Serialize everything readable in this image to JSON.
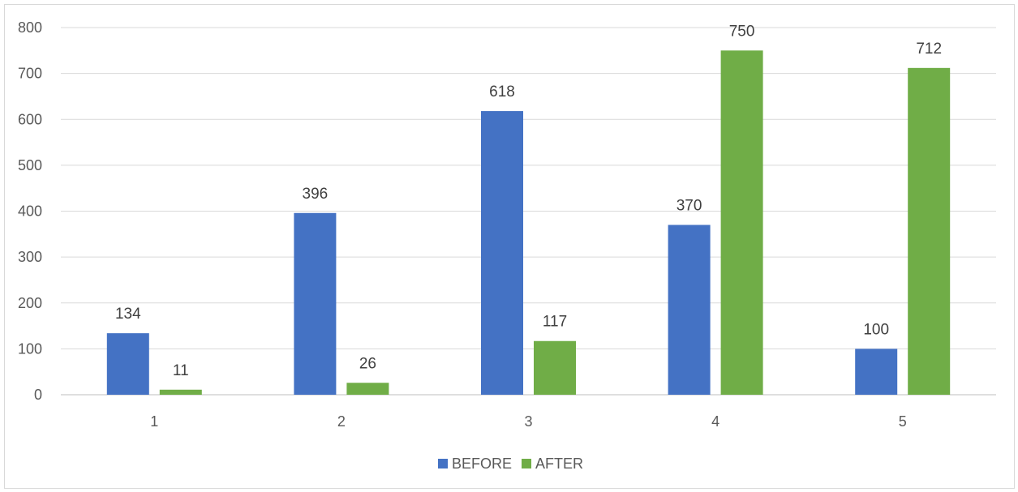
{
  "chart_data": {
    "type": "bar",
    "categories": [
      "1",
      "2",
      "3",
      "4",
      "5"
    ],
    "series": [
      {
        "name": "BEFORE",
        "values": [
          134,
          396,
          618,
          370,
          100
        ],
        "color": "#4472c4"
      },
      {
        "name": "AFTER",
        "values": [
          11,
          26,
          117,
          750,
          712
        ],
        "color": "#70ad47"
      }
    ],
    "ylim": [
      0,
      800
    ],
    "yticks": [
      0,
      100,
      200,
      300,
      400,
      500,
      600,
      700,
      800
    ],
    "grid": true,
    "legend_position": "bottom",
    "data_labels": true
  }
}
